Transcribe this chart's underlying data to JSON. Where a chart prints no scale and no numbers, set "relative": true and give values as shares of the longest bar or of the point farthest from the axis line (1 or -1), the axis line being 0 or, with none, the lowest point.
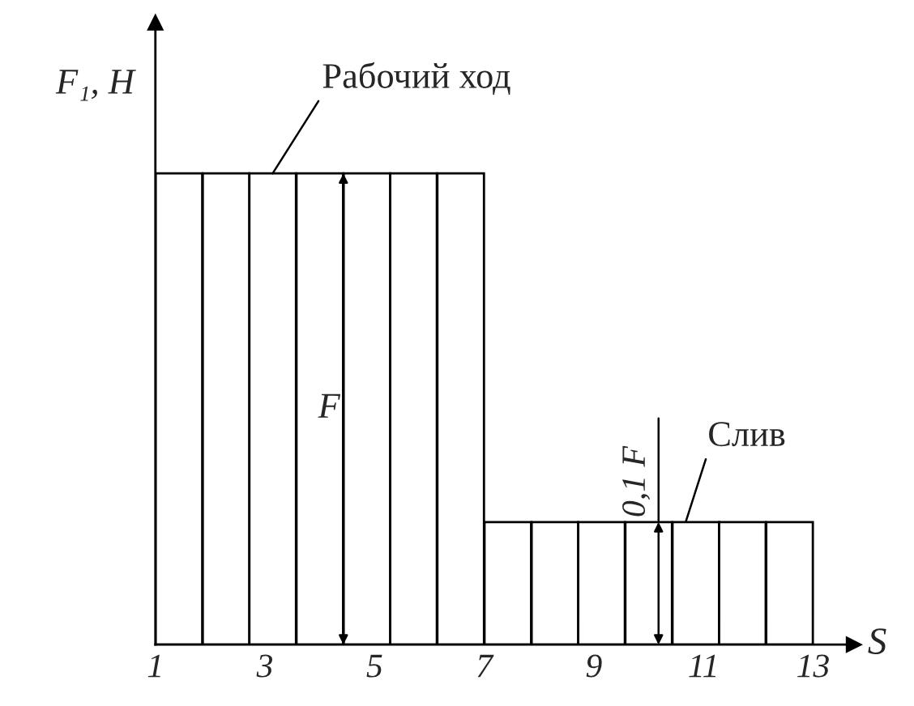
{
  "chart_data": {
    "type": "bar",
    "relative": true,
    "x": [
      1.43,
      2.29,
      3.14,
      4.0,
      4.86,
      5.71,
      6.57,
      7.43,
      8.29,
      9.14,
      10.0,
      10.86,
      11.71,
      12.57
    ],
    "values": [
      1,
      1,
      1,
      1,
      1,
      1,
      1,
      0.26,
      0.26,
      0.26,
      0.26,
      0.26,
      0.26,
      0.26
    ],
    "color": "#ffffff",
    "xlim": [
      1,
      13.74
    ],
    "xticks": [
      1,
      3,
      5,
      7,
      9,
      11,
      13
    ],
    "xlabel": "S",
    "ylabel": "F₁, H",
    "annotations": [
      "Рабочий ход",
      {
        "text": "F",
        "x": 4.43,
        "y": 0.5
      },
      {
        "text": "0,1 F",
        "x": 10.18,
        "y": 0.26
      },
      "Слив"
    ],
    "grid": false
  }
}
